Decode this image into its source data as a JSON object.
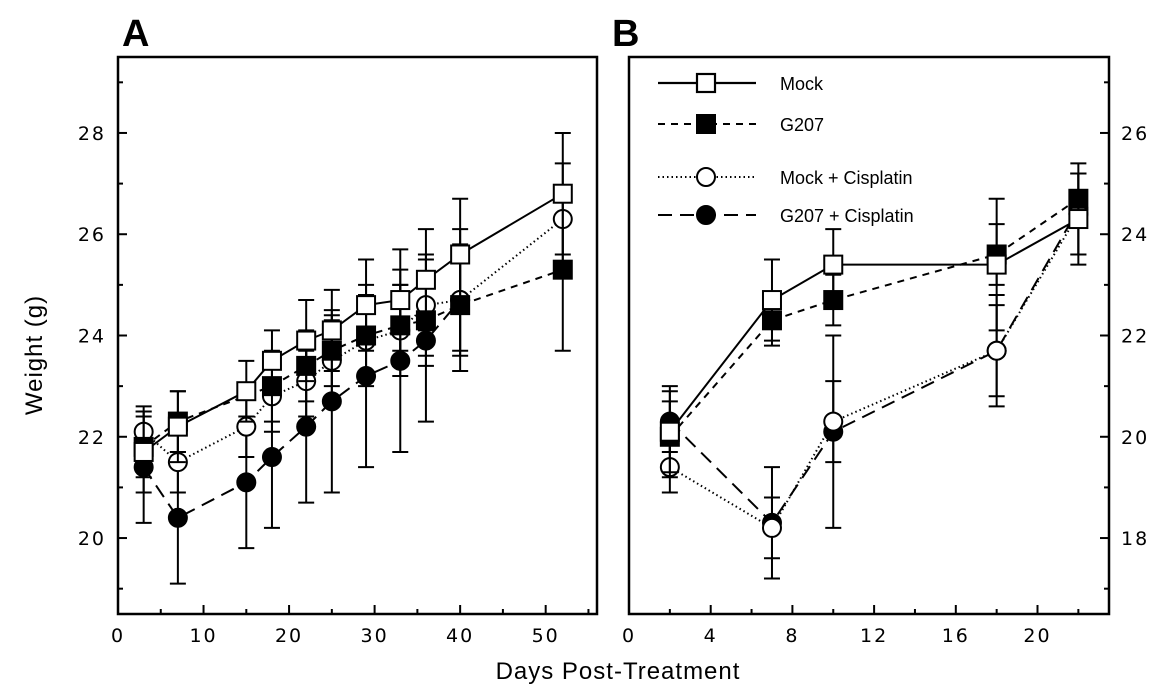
{
  "chart_data": [
    {
      "panel": "A",
      "type": "line",
      "xlabel": "Days  Post-Treatment",
      "ylabel": "Weight  (g)",
      "xlim": [
        0,
        56
      ],
      "ylim": [
        18.5,
        29.5
      ],
      "xticks": [
        0,
        10,
        20,
        30,
        40,
        50
      ],
      "yticks": [
        20,
        22,
        24,
        26,
        28
      ],
      "series": [
        {
          "name": "Mock",
          "marker": "open-square",
          "dash": "solid",
          "x": [
            3,
            7,
            15,
            18,
            22,
            25,
            29,
            33,
            36,
            40,
            52
          ],
          "y": [
            21.7,
            22.2,
            22.9,
            23.5,
            23.9,
            24.1,
            24.6,
            24.7,
            25.1,
            25.6,
            26.8
          ],
          "err": [
            0.8,
            0.7,
            0.6,
            0.6,
            0.8,
            0.8,
            0.9,
            1.0,
            1.0,
            1.1,
            1.2
          ]
        },
        {
          "name": "G207",
          "marker": "filled-square",
          "dash": "short-dash",
          "x": [
            3,
            7,
            18,
            22,
            25,
            29,
            33,
            36,
            40,
            52
          ],
          "y": [
            21.8,
            22.3,
            23.0,
            23.4,
            23.7,
            24.0,
            24.2,
            24.3,
            24.6,
            25.3
          ],
          "err": [
            0.6,
            0.6,
            0.7,
            0.7,
            0.7,
            0.8,
            0.8,
            0.9,
            0.9,
            1.6
          ]
        },
        {
          "name": "Mock + Cisplatin",
          "marker": "open-circle",
          "dash": "dotted",
          "x": [
            3,
            7,
            15,
            18,
            22,
            25,
            29,
            33,
            36,
            40,
            52
          ],
          "y": [
            22.1,
            21.5,
            22.2,
            22.8,
            23.1,
            23.5,
            23.9,
            24.1,
            24.6,
            24.7,
            26.3
          ],
          "err": [
            0.5,
            0.6,
            0.6,
            0.7,
            0.7,
            0.8,
            0.9,
            0.9,
            1.0,
            1.1,
            1.1
          ]
        },
        {
          "name": "G207 + Cisplatin",
          "marker": "filled-circle",
          "dash": "long-dash",
          "x": [
            3,
            7,
            15,
            18,
            22,
            25,
            29,
            33,
            36,
            40
          ],
          "y": [
            21.4,
            20.4,
            21.1,
            21.6,
            22.2,
            22.7,
            23.2,
            23.5,
            23.9,
            24.7
          ],
          "err": [
            1.1,
            1.3,
            1.3,
            1.4,
            1.5,
            1.8,
            1.8,
            1.8,
            1.6,
            1.4
          ]
        }
      ]
    },
    {
      "panel": "B",
      "type": "line",
      "xlabel": "Days  Post-Treatment",
      "ylabel": "",
      "xlim": [
        0,
        23.5
      ],
      "ylim": [
        16.5,
        27.5
      ],
      "xticks": [
        0,
        4,
        8,
        12,
        16,
        20
      ],
      "yticks": [
        18,
        20,
        22,
        24,
        26
      ],
      "series": [
        {
          "name": "Mock",
          "marker": "open-square",
          "dash": "solid",
          "x": [
            2,
            7,
            10,
            18,
            22
          ],
          "y": [
            20.1,
            22.7,
            23.4,
            23.4,
            24.3
          ],
          "err": [
            0.9,
            0.8,
            0.7,
            1.3,
            0.9
          ]
        },
        {
          "name": "G207",
          "marker": "filled-square",
          "dash": "short-dash",
          "x": [
            2,
            7,
            10,
            18,
            22
          ],
          "y": [
            20.0,
            22.3,
            22.7,
            23.6,
            24.7
          ],
          "err": [
            0.7,
            0.5,
            0.5,
            0.6,
            0.5
          ]
        },
        {
          "name": "Mock + Cisplatin",
          "marker": "open-circle",
          "dash": "dotted",
          "x": [
            2,
            7,
            10,
            18,
            22
          ],
          "y": [
            19.4,
            18.2,
            20.3,
            21.7,
            24.4
          ],
          "err": [
            0.5,
            0.6,
            0.8,
            0.9,
            0.8
          ]
        },
        {
          "name": "G207 + Cisplatin",
          "marker": "filled-circle",
          "dash": "long-dash",
          "x": [
            2,
            7,
            10,
            18,
            22
          ],
          "y": [
            20.3,
            18.3,
            20.1,
            21.7,
            24.5
          ],
          "err": [
            0.6,
            1.1,
            1.9,
            1.1,
            0.9
          ]
        }
      ]
    }
  ],
  "panels": {
    "a_label": "A",
    "b_label": "B"
  },
  "legend": [
    {
      "label": "Mock"
    },
    {
      "label": "G207"
    },
    {
      "label": "Mock + Cisplatin"
    },
    {
      "label": "G207 + Cisplatin"
    }
  ],
  "axis_titles": {
    "x": "Days  Post-Treatment",
    "y": "Weight  (g)"
  }
}
